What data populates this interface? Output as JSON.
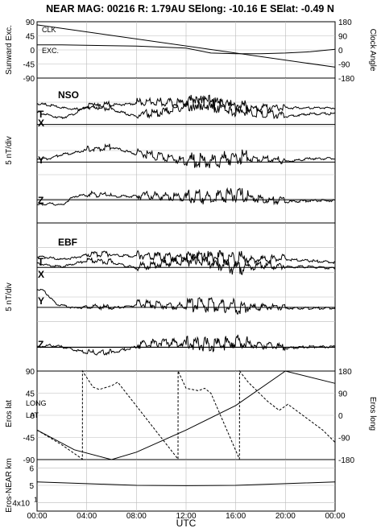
{
  "title": "NEAR MAG: 00216  R: 1.79AU  SElong:  -10.16 E  SElat:   -0.49 N",
  "colors": {
    "trace": "#000000",
    "grid": "#bbbbbb",
    "background": "#ffffff"
  },
  "chart_data": [
    {
      "type": "line",
      "panel": "sunward-clock",
      "ylabel": "Sunward Exc.",
      "ylabel_right": "Clock Angle",
      "yticks_left": [
        "90",
        "45",
        "0",
        "-45",
        "-90"
      ],
      "yticks_right": [
        "180",
        "90",
        "0",
        "-90",
        "-180"
      ],
      "ylim": [
        -90,
        90
      ],
      "series": [
        {
          "label": "CLK",
          "style": "solid",
          "x": [
            0,
            24
          ],
          "y": [
            80,
            -55
          ]
        },
        {
          "label": "EXC.",
          "style": "solid",
          "x": [
            0,
            2,
            8,
            12,
            14,
            16,
            18,
            20,
            22,
            24
          ],
          "y": [
            16,
            16,
            12,
            6,
            -10,
            -12,
            -12,
            -10,
            -6,
            2
          ]
        }
      ]
    },
    {
      "type": "line",
      "panel": "NSO",
      "panel_label": "NSO",
      "ylabel": "5 nT/div",
      "component_labels": [
        "T",
        "X",
        "Y",
        "Z"
      ],
      "baselines": [
        0.32,
        0.58,
        0.84
      ],
      "series": [
        {
          "name": "T",
          "x": [
            0,
            1,
            2,
            3,
            4,
            6,
            8,
            10,
            12,
            14,
            16,
            18,
            20,
            22,
            24
          ],
          "y": [
            0.18,
            0.19,
            0.21,
            0.22,
            0.21,
            0.19,
            0.18,
            0.18,
            0.19,
            0.21,
            0.23,
            0.22,
            0.21,
            0.21,
            0.21
          ]
        },
        {
          "name": "X",
          "x": [
            0,
            1,
            2,
            3,
            4,
            6,
            8,
            10,
            12,
            14,
            16,
            18,
            20,
            22,
            24
          ],
          "y": [
            0.24,
            0.26,
            0.28,
            0.25,
            0.2,
            0.22,
            0.27,
            0.25,
            0.21,
            0.19,
            0.24,
            0.26,
            0.27,
            0.25,
            0.25
          ]
        },
        {
          "name": "Y",
          "x": [
            0,
            1,
            2,
            3,
            4,
            5,
            6,
            8,
            10,
            12,
            14,
            16,
            18,
            20,
            22,
            24
          ],
          "y": [
            0.56,
            0.56,
            0.53,
            0.52,
            0.5,
            0.5,
            0.48,
            0.53,
            0.56,
            0.59,
            0.6,
            0.57,
            0.57,
            0.58,
            0.56,
            0.56
          ]
        },
        {
          "name": "Z",
          "x": [
            0,
            1,
            2,
            3,
            4,
            6,
            8,
            10,
            12,
            14,
            16,
            18,
            20,
            22,
            24
          ],
          "y": [
            0.88,
            0.87,
            0.88,
            0.82,
            0.81,
            0.82,
            0.82,
            0.83,
            0.84,
            0.85,
            0.83,
            0.85,
            0.86,
            0.85,
            0.85
          ]
        }
      ]
    },
    {
      "type": "line",
      "panel": "EBF",
      "panel_label": "EBF",
      "ylabel": "5 nT/div",
      "component_labels": [
        "T",
        "X",
        "Y",
        "Z"
      ],
      "baselines": [
        0.3,
        0.57,
        0.84
      ],
      "series": [
        {
          "name": "T",
          "x": [
            0,
            1,
            2,
            3,
            4,
            6,
            8,
            10,
            12,
            14,
            16,
            18,
            20,
            22,
            24
          ],
          "y": [
            0.23,
            0.24,
            0.25,
            0.24,
            0.22,
            0.22,
            0.23,
            0.24,
            0.25,
            0.26,
            0.27,
            0.26,
            0.25,
            0.26,
            0.27
          ]
        },
        {
          "name": "X",
          "x": [
            0,
            1,
            2,
            3,
            4,
            6,
            8,
            10,
            12,
            14,
            16,
            18,
            20,
            22,
            24
          ],
          "y": [
            0.28,
            0.29,
            0.3,
            0.28,
            0.26,
            0.27,
            0.31,
            0.29,
            0.27,
            0.28,
            0.33,
            0.3,
            0.3,
            0.3,
            0.31
          ]
        },
        {
          "name": "Y",
          "x": [
            0,
            0.5,
            1,
            1.5,
            2,
            3,
            4,
            6,
            8,
            10,
            12,
            14,
            16,
            18,
            20,
            22,
            24
          ],
          "y": [
            0.45,
            0.46,
            0.5,
            0.55,
            0.56,
            0.58,
            0.57,
            0.58,
            0.56,
            0.57,
            0.58,
            0.58,
            0.59,
            0.58,
            0.58,
            0.58,
            0.58
          ]
        },
        {
          "name": "Z",
          "x": [
            0,
            1,
            2,
            3,
            4,
            5,
            6,
            8,
            10,
            12,
            14,
            16,
            18,
            20,
            22,
            24
          ],
          "y": [
            0.84,
            0.83,
            0.84,
            0.86,
            0.88,
            0.89,
            0.88,
            0.84,
            0.82,
            0.83,
            0.85,
            0.83,
            0.84,
            0.85,
            0.84,
            0.84
          ]
        }
      ]
    },
    {
      "type": "line",
      "panel": "eros-lat-long",
      "ylabel": "Eros lat",
      "ylabel_right": "Eros long",
      "yticks_left": [
        "90",
        "45",
        "0",
        "-45",
        "-90"
      ],
      "yticks_right": [
        "180",
        "90",
        "0",
        "-90",
        "-180"
      ],
      "ylim": [
        -90,
        90
      ],
      "series": [
        {
          "label": "LAT",
          "style": "solid",
          "x": [
            0,
            3,
            6,
            8,
            12,
            16,
            20,
            24
          ],
          "y": [
            -30,
            -70,
            -90,
            -75,
            -30,
            20,
            90,
            65
          ]
        },
        {
          "label": "LONG",
          "style": "dashed",
          "x": [
            0,
            1,
            2,
            3.65,
            3.66,
            4.5,
            5,
            6,
            6.5,
            11.35,
            11.36,
            12,
            13,
            13.5,
            14,
            16.3,
            16.31,
            17,
            18.5,
            19.5,
            20.2,
            23,
            24
          ],
          "y": [
            -60,
            -90,
            -120,
            -178,
            180,
            115,
            105,
            120,
            135,
            -178,
            180,
            110,
            100,
            110,
            90,
            -178,
            180,
            135,
            60,
            20,
            45,
            -60,
            -110
          ]
        }
      ]
    },
    {
      "type": "line",
      "panel": "eros-near-km",
      "ylabel": "Eros-NEAR km",
      "ytick_mantissa": [
        "6",
        "5",
        "4x10"
      ],
      "ytick_exponent": "1",
      "ylim": [
        35,
        65
      ],
      "series": [
        {
          "name": "range",
          "x": [
            0,
            4,
            8,
            12,
            16,
            20,
            24
          ],
          "y": [
            52,
            51,
            50,
            49.8,
            50,
            51,
            52
          ]
        }
      ],
      "xlabel": "UTC",
      "xticks": [
        "00:00",
        "04:00",
        "08:00",
        "12:00",
        "16:00",
        "20:00",
        "00:00"
      ]
    }
  ]
}
